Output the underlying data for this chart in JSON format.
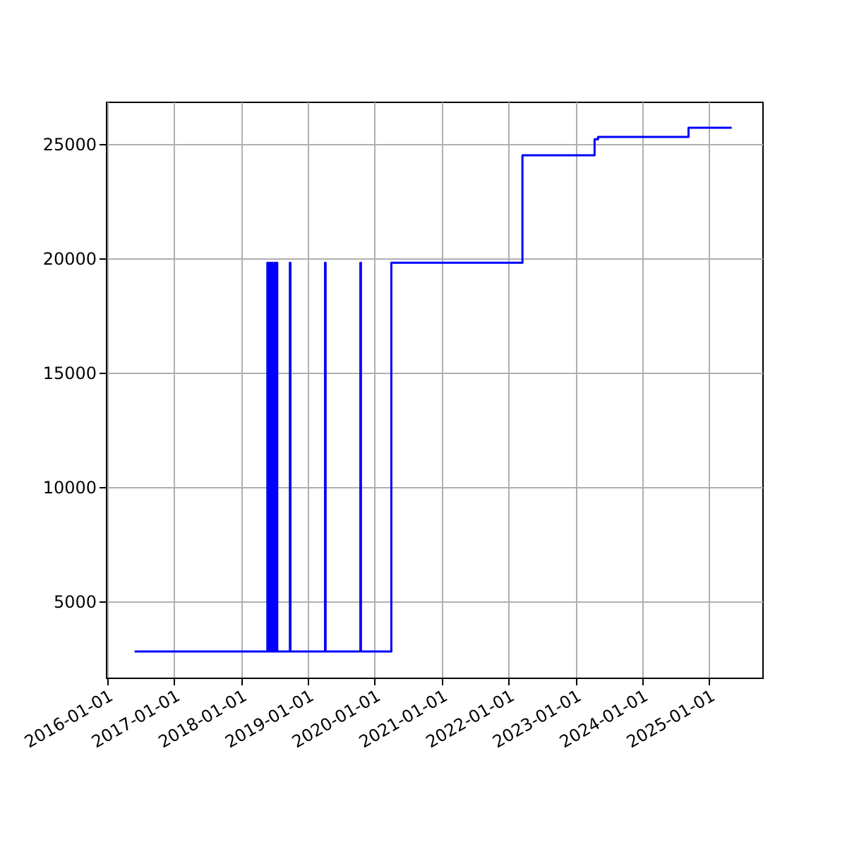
{
  "chart_data": {
    "type": "step",
    "x": [
      "2016-05-30",
      "2018-05-25",
      "2018-05-27",
      "2018-06-03",
      "2018-06-05",
      "2018-06-12",
      "2018-06-14",
      "2018-06-22",
      "2018-06-24",
      "2018-07-05",
      "2018-07-07",
      "2018-07-15",
      "2018-07-18",
      "2018-09-25",
      "2018-09-28",
      "2019-04-05",
      "2019-04-08",
      "2019-10-15",
      "2019-10-18",
      "2020-04-01",
      "2022-03-18",
      "2023-04-16",
      "2023-05-05",
      "2024-09-10",
      "2025-05-04"
    ],
    "series": [
      {
        "color": "#0000ff",
        "values": [
          2800,
          19800,
          2800,
          19800,
          2800,
          19800,
          2800,
          19800,
          2800,
          19800,
          2800,
          19800,
          2800,
          19800,
          2800,
          19800,
          2800,
          19800,
          2800,
          19800,
          24500,
          25200,
          25300,
          25700,
          25700
        ]
      }
    ],
    "xlim": [
      "2015-12-25",
      "2025-10-18"
    ],
    "ylim": [
      1655,
      26845
    ],
    "xticks": [
      "2016-01-01",
      "2017-01-01",
      "2018-01-01",
      "2019-01-01",
      "2020-01-01",
      "2021-01-01",
      "2022-01-01",
      "2023-01-01",
      "2024-01-01",
      "2025-01-01"
    ],
    "yticks": [
      5000,
      10000,
      15000,
      20000,
      25000
    ],
    "grid": true,
    "line_style": "solid"
  }
}
